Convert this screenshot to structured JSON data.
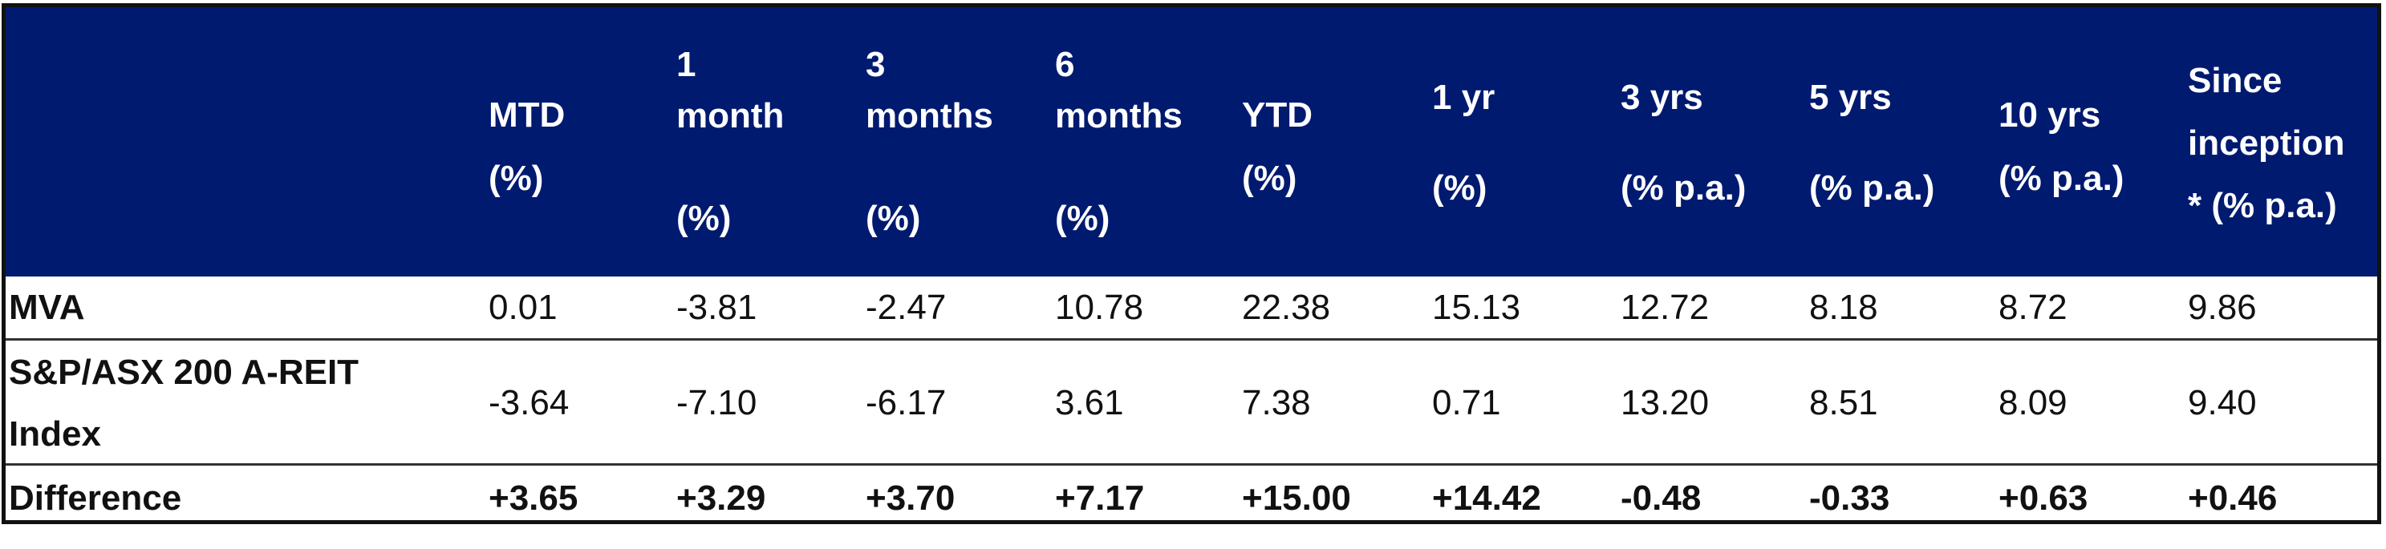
{
  "table": {
    "header_color": "#001A70",
    "columns": [
      {
        "lines": [
          "MTD",
          "(%)"
        ]
      },
      {
        "lines": [
          "1",
          "month",
          "",
          "(%)"
        ]
      },
      {
        "lines": [
          "3",
          "months",
          "",
          "(%)"
        ]
      },
      {
        "lines": [
          "6",
          "months",
          "",
          "(%)"
        ]
      },
      {
        "lines": [
          "YTD",
          "(%)"
        ]
      },
      {
        "lines": [
          "1 yr",
          "(%)"
        ]
      },
      {
        "lines": [
          "3 yrs",
          "(% p.a.)"
        ]
      },
      {
        "lines": [
          "5 yrs",
          "(% p.a.)"
        ]
      },
      {
        "lines": [
          "10 yrs",
          "(% p.a.)"
        ]
      },
      {
        "lines": [
          "Since",
          "inception",
          "* (% p.a.)"
        ]
      }
    ],
    "rows": [
      {
        "label_lines": [
          "MVA"
        ],
        "values": [
          "0.01",
          "-3.81",
          "-2.47",
          "10.78",
          "22.38",
          "15.13",
          "12.72",
          "8.18",
          "8.72",
          "9.86"
        ],
        "bold": false
      },
      {
        "label_lines": [
          "S&P/ASX 200 A-REIT",
          "Index"
        ],
        "values": [
          "-3.64",
          "-7.10",
          "-6.17",
          "3.61",
          "7.38",
          "0.71",
          "13.20",
          "8.51",
          "8.09",
          "9.40"
        ],
        "bold": false
      },
      {
        "label_lines": [
          "Difference"
        ],
        "values": [
          "+3.65",
          "+3.29",
          "+3.70",
          "+7.17",
          "+15.00",
          "+14.42",
          "-0.48",
          "-0.33",
          "+0.63",
          "+0.46"
        ],
        "bold": true
      }
    ]
  }
}
